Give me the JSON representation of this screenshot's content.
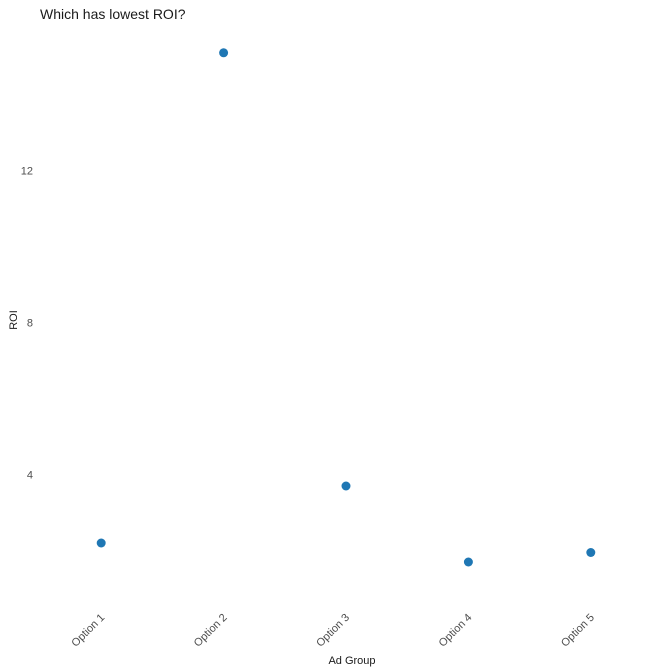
{
  "chart_data": {
    "type": "scatter",
    "title": "Which has lowest ROI?",
    "xlabel": "Ad Group",
    "ylabel": "ROI",
    "categories": [
      "Option 1",
      "Option 2",
      "Option 3",
      "Option 4",
      "Option 5"
    ],
    "series": [
      {
        "values": [
          2.2,
          15.1,
          3.7,
          1.7,
          1.95
        ]
      }
    ],
    "yticks": [
      4,
      8,
      12
    ],
    "ylim": [
      0.7,
      15.7
    ],
    "grid": false,
    "legend": "none",
    "point_color": "#1f77b4"
  }
}
